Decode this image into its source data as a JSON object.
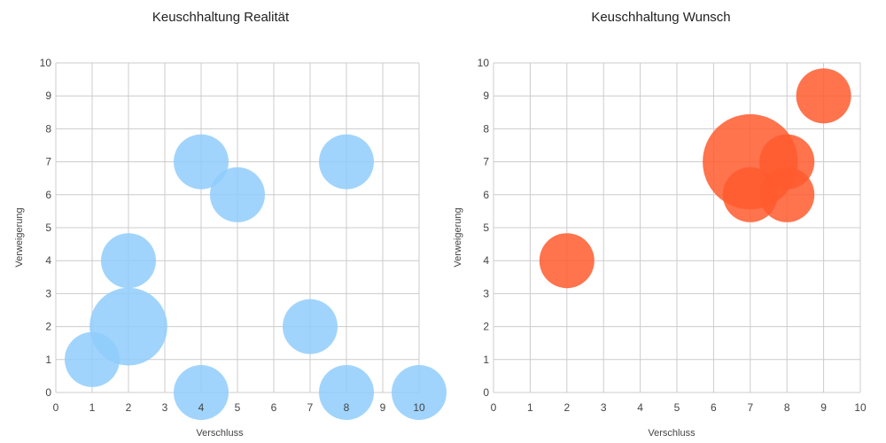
{
  "chart_data": [
    {
      "type": "scatter",
      "title": "Keuschhaltung Realität",
      "xlabel": "Verschluss",
      "ylabel": "Verweigerung",
      "xlim": [
        0,
        10
      ],
      "ylim": [
        0,
        10
      ],
      "x_ticks": [
        0,
        1,
        2,
        3,
        4,
        5,
        6,
        7,
        8,
        9,
        10
      ],
      "y_ticks": [
        0,
        1,
        2,
        3,
        4,
        5,
        6,
        7,
        8,
        9,
        10
      ],
      "grid": true,
      "legend": "none",
      "color": "#8fcdfb",
      "points": [
        {
          "x": 1,
          "y": 1,
          "size": 1
        },
        {
          "x": 2,
          "y": 2,
          "size": 2
        },
        {
          "x": 2,
          "y": 4,
          "size": 1
        },
        {
          "x": 4,
          "y": 7,
          "size": 1
        },
        {
          "x": 5,
          "y": 6,
          "size": 1
        },
        {
          "x": 8,
          "y": 7,
          "size": 1
        },
        {
          "x": 7,
          "y": 2,
          "size": 1
        },
        {
          "x": 4,
          "y": 0,
          "size": 1
        },
        {
          "x": 8,
          "y": 0,
          "size": 1
        },
        {
          "x": 10,
          "y": 0,
          "size": 1
        }
      ]
    },
    {
      "type": "scatter",
      "title": "Keuschhaltung Wunsch",
      "xlabel": "Verschluss",
      "ylabel": "Verweigerung",
      "xlim": [
        0,
        10
      ],
      "ylim": [
        0,
        10
      ],
      "x_ticks": [
        0,
        1,
        2,
        3,
        4,
        5,
        6,
        7,
        8,
        9,
        10
      ],
      "y_ticks": [
        0,
        1,
        2,
        3,
        4,
        5,
        6,
        7,
        8,
        9,
        10
      ],
      "grid": true,
      "legend": "none",
      "color": "#ff5a2e",
      "points": [
        {
          "x": 2,
          "y": 4,
          "size": 1
        },
        {
          "x": 7,
          "y": 7,
          "size": 3
        },
        {
          "x": 7,
          "y": 6,
          "size": 1
        },
        {
          "x": 8,
          "y": 7,
          "size": 1
        },
        {
          "x": 8,
          "y": 6,
          "size": 1
        },
        {
          "x": 9,
          "y": 9,
          "size": 1
        }
      ]
    }
  ]
}
